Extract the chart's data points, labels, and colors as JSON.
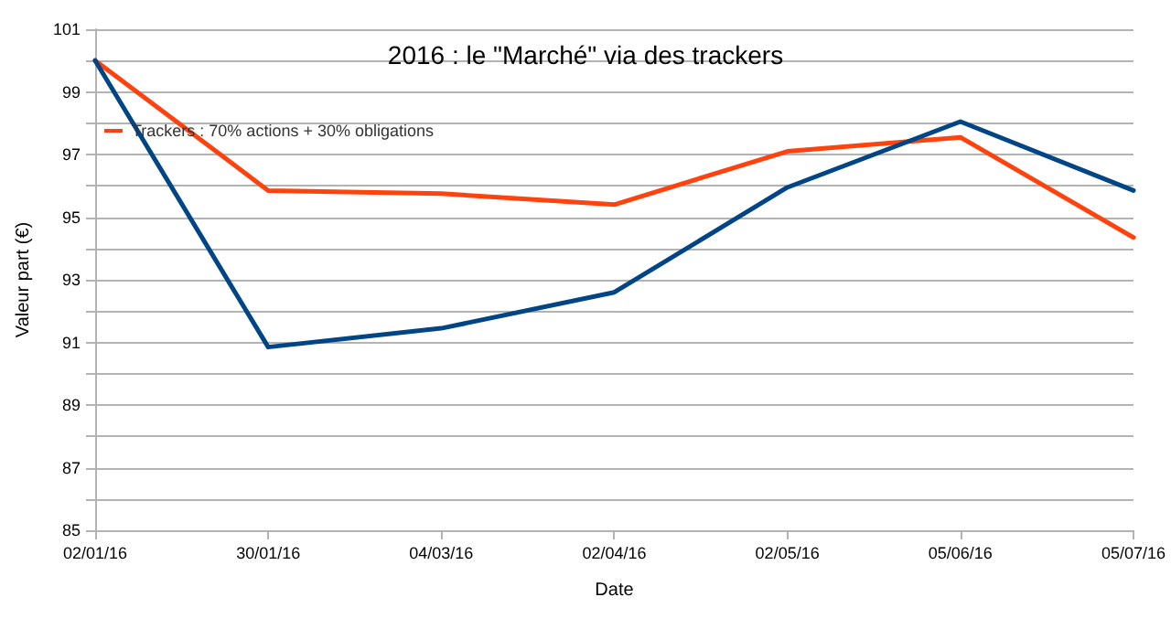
{
  "chart_data": {
    "type": "line",
    "title": "2016 : le \"Marché\" via des trackers",
    "xlabel": "Date",
    "ylabel": "Valeur part (€)",
    "categories": [
      "02/01/16",
      "30/01/16",
      "04/03/16",
      "02/04/16",
      "02/05/16",
      "05/06/16",
      "05/07/16"
    ],
    "series": [
      {
        "name": "Trackers : 70% actions + 30% obligations",
        "color": "#ff420e",
        "values": [
          100,
          95.85,
          95.75,
          95.4,
          97.1,
          97.55,
          94.35
        ]
      },
      {
        "color": "#004586",
        "values": [
          100,
          90.85,
          91.45,
          92.6,
          95.95,
          98.05,
          95.85
        ]
      }
    ],
    "ylim": [
      85,
      101
    ],
    "yticks": [
      85,
      {
        "value": 86,
        "label": null
      },
      87,
      {
        "value": 88,
        "label": null
      },
      89,
      {
        "value": 90,
        "label": null
      },
      91,
      {
        "value": 92,
        "label": null
      },
      93,
      {
        "value": 94,
        "label": null
      },
      95,
      {
        "value": 96,
        "label": null
      },
      97,
      {
        "value": 98,
        "label": null
      },
      99,
      {
        "value": 100,
        "label": null
      },
      101
    ],
    "grid": "y",
    "legend": "top left",
    "marker": "none",
    "line_style": "solid"
  }
}
